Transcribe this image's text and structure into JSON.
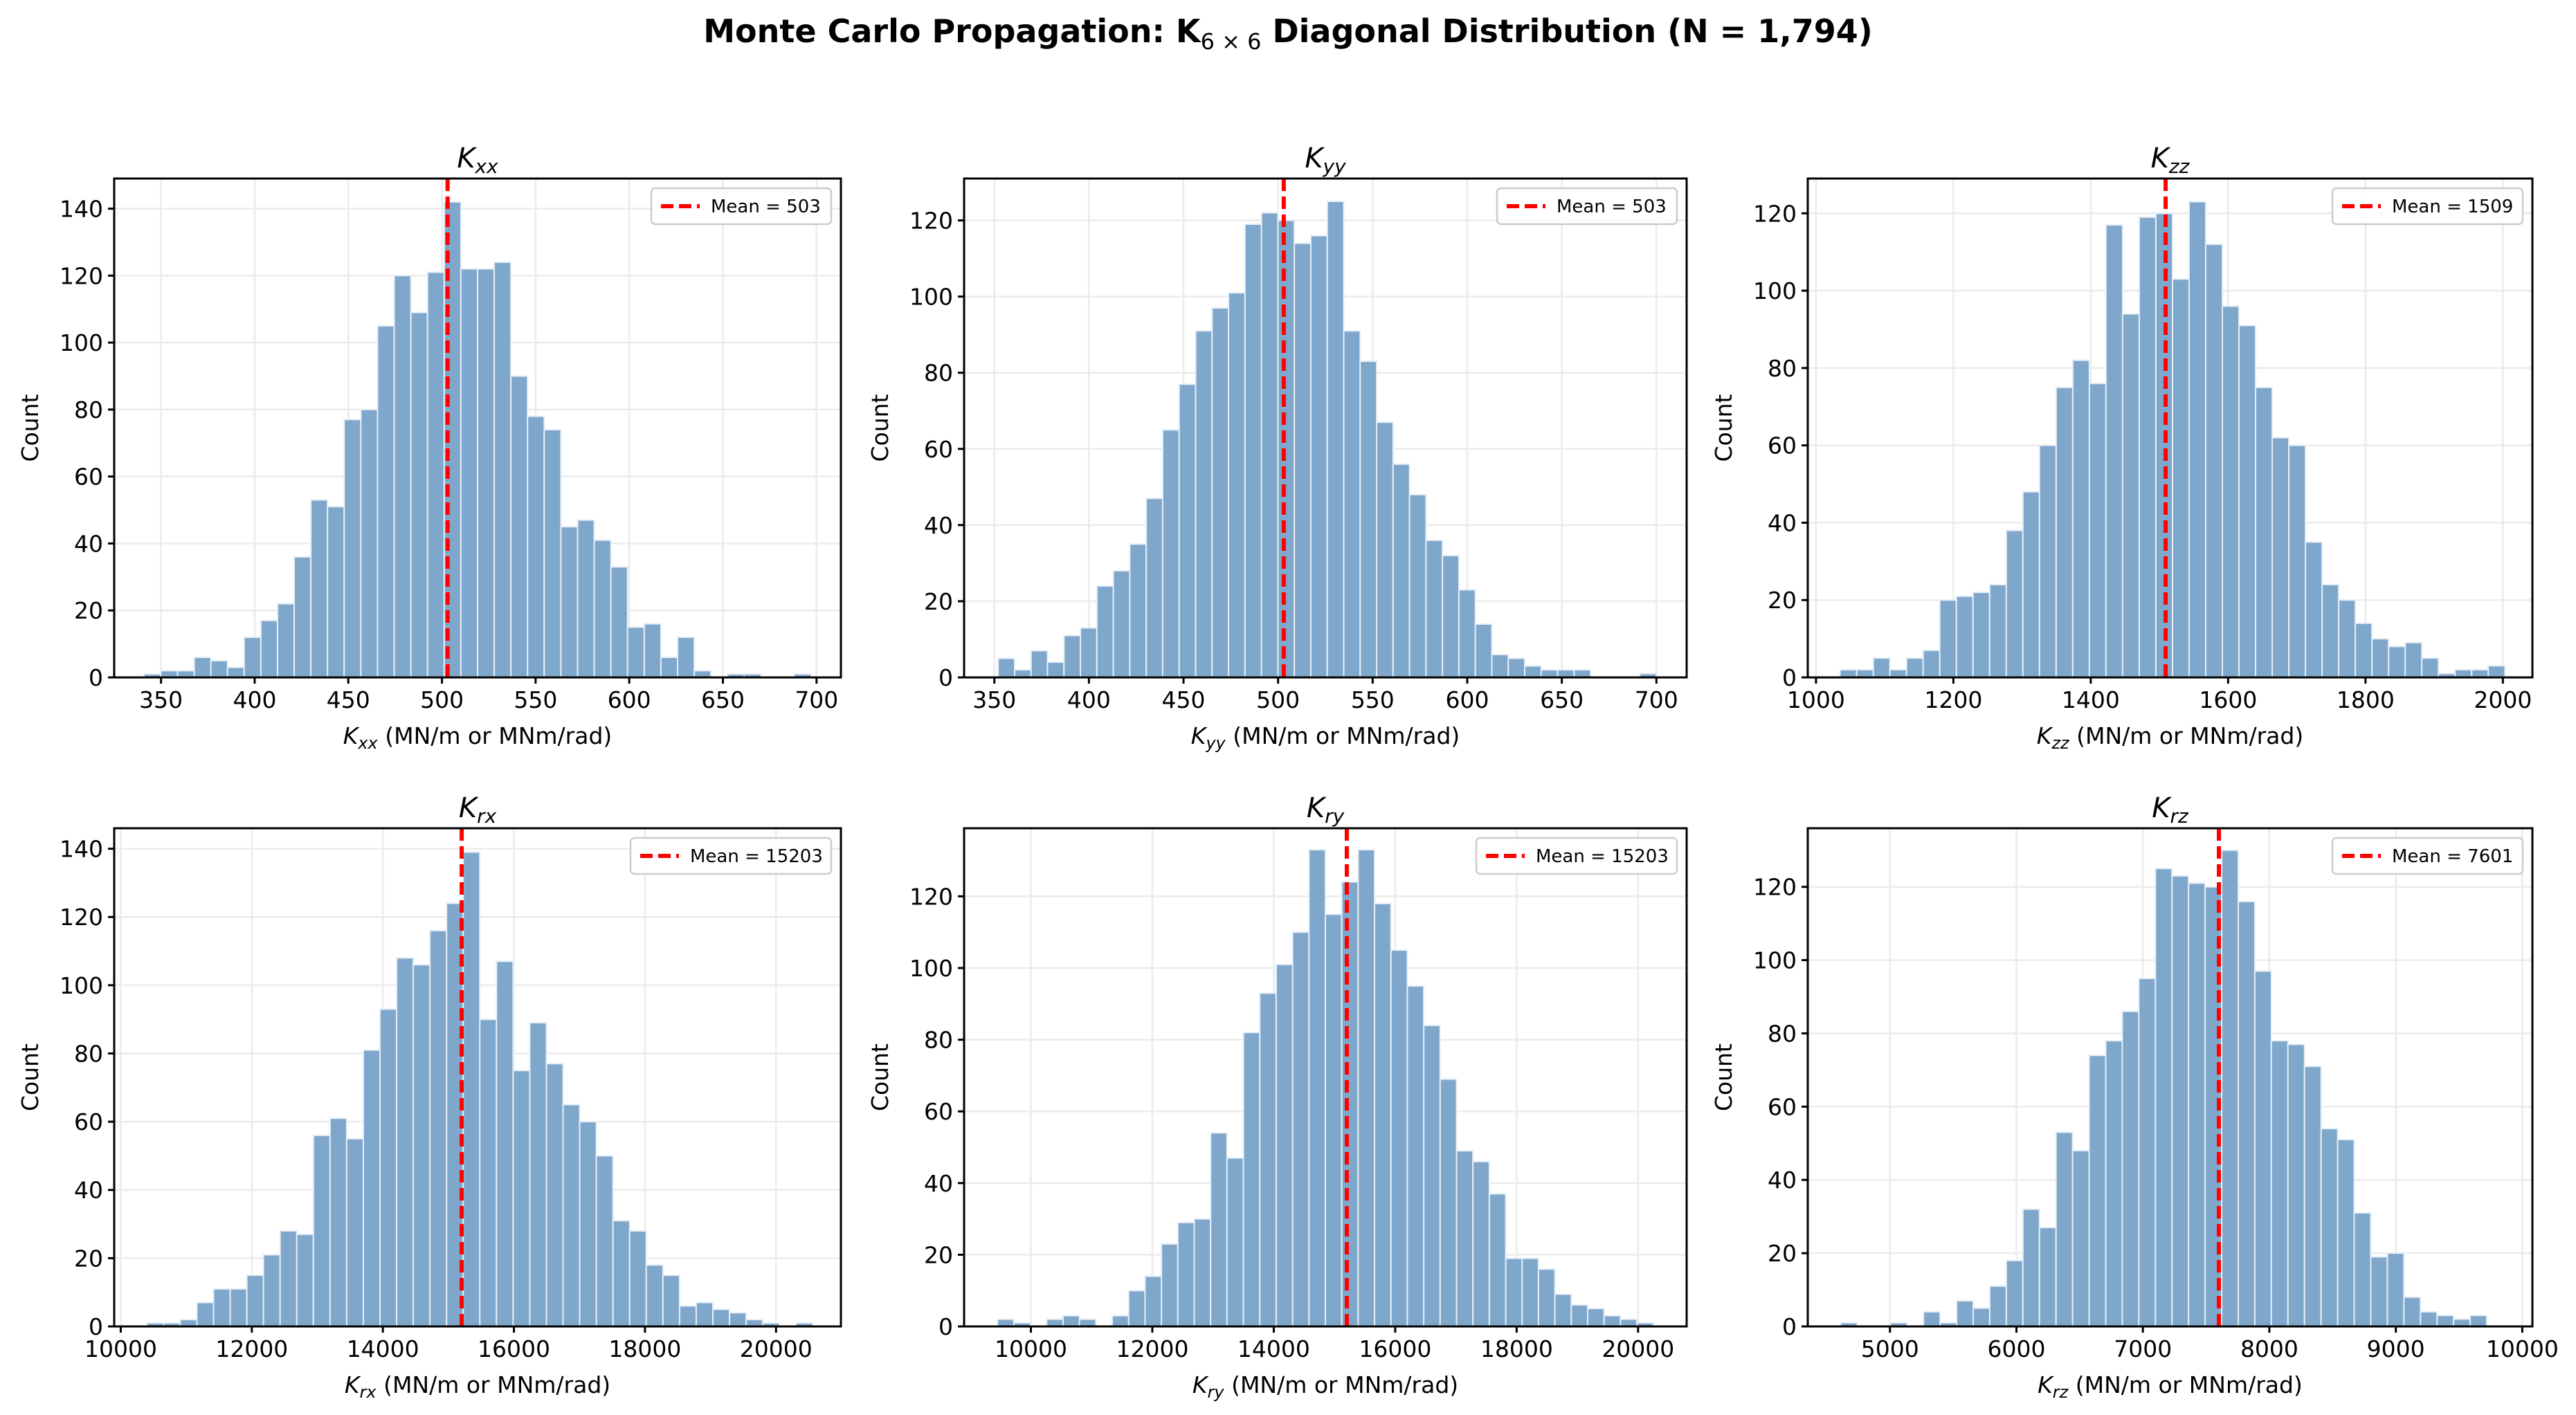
{
  "figure": {
    "title_main": "Monte Carlo Propagation: K",
    "title_sub": "6 × 6",
    "title_rest": " Diagonal Distribution (N = 1,794)"
  },
  "colors": {
    "bar_fill": "#7fa7cb",
    "bar_edge": "#e6eef7",
    "mean_line": "#ff0000",
    "grid": "#ebebeb"
  },
  "chart_data": [
    {
      "type": "bar",
      "id": "kxx",
      "title_base": "K",
      "title_sub": "xx",
      "xlabel_sub": "xx",
      "xlabel_rest": " (MN/m or MNm/rad)",
      "ylabel": "Count",
      "bin_start": 341,
      "bin_width": 8.9,
      "values": [
        1,
        2,
        2,
        6,
        5,
        3,
        12,
        17,
        22,
        36,
        53,
        51,
        77,
        80,
        105,
        120,
        109,
        121,
        142,
        122,
        122,
        124,
        90,
        78,
        74,
        45,
        47,
        41,
        33,
        15,
        16,
        6,
        12,
        2,
        0,
        1,
        1,
        0,
        0,
        1
      ],
      "xlim": [
        325,
        713
      ],
      "ylim": [
        0,
        149
      ],
      "xticks": [
        350,
        400,
        450,
        500,
        550,
        600,
        650,
        700
      ],
      "yticks": [
        0,
        20,
        40,
        60,
        80,
        100,
        120,
        140
      ],
      "mean": 503,
      "legend": "Mean = 503",
      "legend_position": "top-right",
      "grid": true
    },
    {
      "type": "bar",
      "id": "kyy",
      "title_base": "K",
      "title_sub": "yy",
      "xlabel_sub": "yy",
      "xlabel_rest": " (MN/m or MNm/rad)",
      "ylabel": "Count",
      "bin_start": 352,
      "bin_width": 8.7,
      "values": [
        5,
        2,
        7,
        4,
        11,
        13,
        24,
        28,
        35,
        47,
        65,
        77,
        91,
        97,
        101,
        119,
        122,
        120,
        114,
        116,
        125,
        91,
        83,
        67,
        56,
        48,
        36,
        32,
        23,
        14,
        6,
        5,
        3,
        2,
        2,
        2,
        0,
        0,
        0,
        1
      ],
      "xlim": [
        334,
        716
      ],
      "ylim": [
        0,
        131
      ],
      "xticks": [
        350,
        400,
        450,
        500,
        550,
        600,
        650,
        700
      ],
      "yticks": [
        0,
        20,
        40,
        60,
        80,
        100,
        120
      ],
      "mean": 503,
      "legend": "Mean = 503",
      "legend_position": "top-right",
      "grid": true
    },
    {
      "type": "bar",
      "id": "kzz",
      "title_base": "K",
      "title_sub": "zz",
      "xlabel_sub": "zz",
      "xlabel_rest": " (MN/m or MNm/rad)",
      "ylabel": "Count",
      "bin_start": 1035,
      "bin_width": 24.2,
      "values": [
        2,
        2,
        5,
        2,
        5,
        7,
        20,
        21,
        22,
        24,
        38,
        48,
        60,
        75,
        82,
        76,
        117,
        94,
        119,
        120,
        103,
        123,
        112,
        96,
        91,
        75,
        62,
        60,
        35,
        24,
        20,
        14,
        10,
        8,
        9,
        5,
        1,
        2,
        2,
        3
      ],
      "xlim": [
        988,
        2043
      ],
      "ylim": [
        0,
        129
      ],
      "xticks": [
        1000,
        1200,
        1400,
        1600,
        1800,
        2000
      ],
      "yticks": [
        0,
        20,
        40,
        60,
        80,
        100,
        120
      ],
      "mean": 1509,
      "legend": "Mean = 1509",
      "legend_position": "top-right",
      "grid": true
    },
    {
      "type": "bar",
      "id": "krx",
      "title_base": "K",
      "title_sub": "rx",
      "xlabel_sub": "rx",
      "xlabel_rest": " (MN/m or MNm/rad)",
      "ylabel": "Count",
      "bin_start": 10400,
      "bin_width": 254,
      "values": [
        1,
        1,
        2,
        7,
        11,
        11,
        15,
        21,
        28,
        27,
        56,
        61,
        55,
        81,
        93,
        108,
        106,
        116,
        124,
        139,
        90,
        107,
        75,
        89,
        77,
        65,
        60,
        50,
        31,
        28,
        18,
        15,
        6,
        7,
        5,
        4,
        2,
        1,
        0,
        1
      ],
      "xlim": [
        9900,
        20990
      ],
      "ylim": [
        0,
        146
      ],
      "xticks": [
        10000,
        12000,
        14000,
        16000,
        18000,
        20000
      ],
      "yticks": [
        0,
        20,
        40,
        60,
        80,
        100,
        120,
        140
      ],
      "mean": 15203,
      "legend": "Mean = 15203",
      "legend_position": "top-right",
      "grid": true
    },
    {
      "type": "bar",
      "id": "kry",
      "title_base": "K",
      "title_sub": "ry",
      "xlabel_sub": "ry",
      "xlabel_rest": " (MN/m or MNm/rad)",
      "ylabel": "Count",
      "bin_start": 9450,
      "bin_width": 270,
      "values": [
        2,
        1,
        0,
        2,
        3,
        2,
        0,
        3,
        10,
        14,
        23,
        29,
        30,
        54,
        47,
        82,
        93,
        101,
        110,
        133,
        115,
        124,
        133,
        118,
        105,
        95,
        84,
        69,
        49,
        46,
        37,
        19,
        19,
        16,
        9,
        6,
        5,
        3,
        2,
        1
      ],
      "xlim": [
        8900,
        20800
      ],
      "ylim": [
        0,
        139
      ],
      "xticks": [
        10000,
        12000,
        14000,
        16000,
        18000,
        20000
      ],
      "yticks": [
        0,
        20,
        40,
        60,
        80,
        100,
        120
      ],
      "mean": 15203,
      "legend": "Mean = 15203",
      "legend_position": "top-right",
      "grid": true
    },
    {
      "type": "bar",
      "id": "krz",
      "title_base": "K",
      "title_sub": "rz",
      "xlabel_sub": "rz",
      "xlabel_rest": " (MN/m or MNm/rad)",
      "ylabel": "Count",
      "bin_start": 4610,
      "bin_width": 131,
      "values": [
        1,
        0,
        0,
        1,
        0,
        4,
        1,
        7,
        5,
        11,
        18,
        32,
        27,
        53,
        48,
        74,
        78,
        86,
        95,
        125,
        123,
        121,
        120,
        130,
        116,
        97,
        78,
        77,
        71,
        54,
        51,
        31,
        19,
        20,
        8,
        4,
        3,
        2,
        3
      ],
      "xlim": [
        4350,
        10080
      ],
      "ylim": [
        0,
        136
      ],
      "xticks": [
        5000,
        6000,
        7000,
        8000,
        9000,
        10000
      ],
      "yticks": [
        0,
        20,
        40,
        60,
        80,
        100,
        120
      ],
      "mean": 7601,
      "legend": "Mean = 7601",
      "legend_position": "top-right",
      "grid": true
    }
  ]
}
